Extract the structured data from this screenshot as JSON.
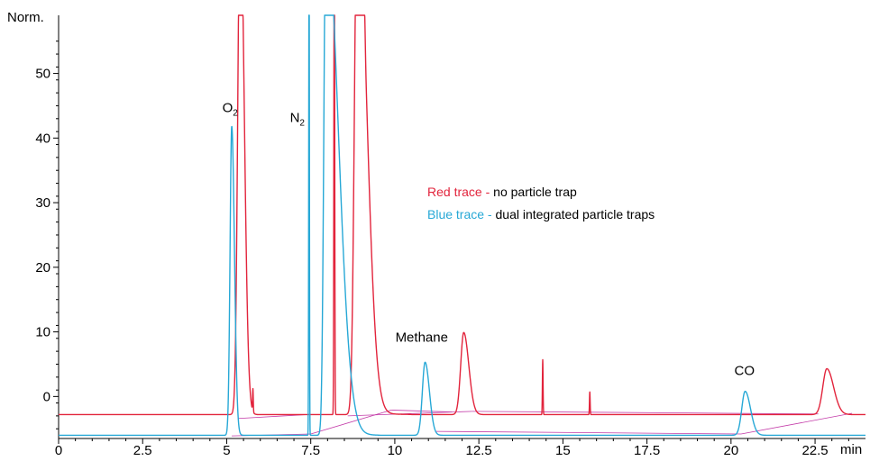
{
  "chart_data": {
    "type": "line",
    "ylabel": "Norm.",
    "xunit": "min",
    "xlim": [
      0,
      24
    ],
    "ylim": [
      -6.5,
      59
    ],
    "x_ticks": [
      0,
      2.5,
      5,
      7.5,
      10,
      12.5,
      15,
      17.5,
      20,
      22.5
    ],
    "x_tick_labels": [
      "0",
      "2.5",
      "5",
      "7.5",
      "10",
      "12.5",
      "15",
      "17.5",
      "20",
      "22.5"
    ],
    "y_ticks": [
      0,
      10,
      20,
      30,
      40,
      50
    ],
    "y_tick_labels": [
      "0",
      "10",
      "20",
      "30",
      "40",
      "50"
    ],
    "grid": false,
    "legend": {
      "placement": "center-right",
      "entries": [
        {
          "key": "Red trace",
          "sep": " - ",
          "desc": "no particle trap",
          "color": "#e2243c"
        },
        {
          "key": "Blue trace",
          "sep": " - ",
          "desc": "dual integrated particle traps",
          "color": "#27a8d6"
        }
      ]
    },
    "annotations": [
      {
        "text": "O",
        "sub": "2",
        "x": 5.1,
        "y": 44
      },
      {
        "text": "N",
        "sub": "2",
        "x": 7.1,
        "y": 42.5
      },
      {
        "text": "Methane",
        "x": 10.8,
        "y": 8.5
      },
      {
        "text": "CO",
        "x": 20.4,
        "y": 3.3
      }
    ],
    "baseline_color": "#c33aa8",
    "series": [
      {
        "color": "#e2243c",
        "baseline": -2.8,
        "peaks": [
          {
            "x": 5.4,
            "h": 80,
            "w": 0.07,
            "tail": 0.05
          },
          {
            "x": 5.78,
            "h": 3.5,
            "w": 0.01,
            "tail": 0
          },
          {
            "x": 8.2,
            "h": 80,
            "w": 0.012,
            "tail": 0
          },
          {
            "x": 8.88,
            "h": 80,
            "w": 0.08,
            "tail": 0.2
          },
          {
            "x": 9.1,
            "h": 4,
            "w": 0.02,
            "tail": 0
          },
          {
            "x": 12.05,
            "h": 12.7,
            "w": 0.09,
            "tail": 0.06
          },
          {
            "x": 14.4,
            "h": 8.5,
            "w": 0.01,
            "tail": 0
          },
          {
            "x": 15.8,
            "h": 3.5,
            "w": 0.01,
            "tail": 0
          },
          {
            "x": 22.85,
            "h": 7.1,
            "w": 0.12,
            "tail": 0.08
          }
        ]
      },
      {
        "color": "#27a8d6",
        "baseline": -6.0,
        "peaks": [
          {
            "x": 5.15,
            "h": 47.8,
            "w": 0.05,
            "tail": 0.03
          },
          {
            "x": 7.45,
            "h": 80,
            "w": 0.01,
            "tail": 0
          },
          {
            "x": 7.95,
            "h": 80,
            "w": 0.06,
            "tail": 0.3
          },
          {
            "x": 10.9,
            "h": 11.3,
            "w": 0.08,
            "tail": 0.05
          },
          {
            "x": 20.42,
            "h": 6.8,
            "w": 0.1,
            "tail": 0.06
          }
        ]
      }
    ]
  }
}
